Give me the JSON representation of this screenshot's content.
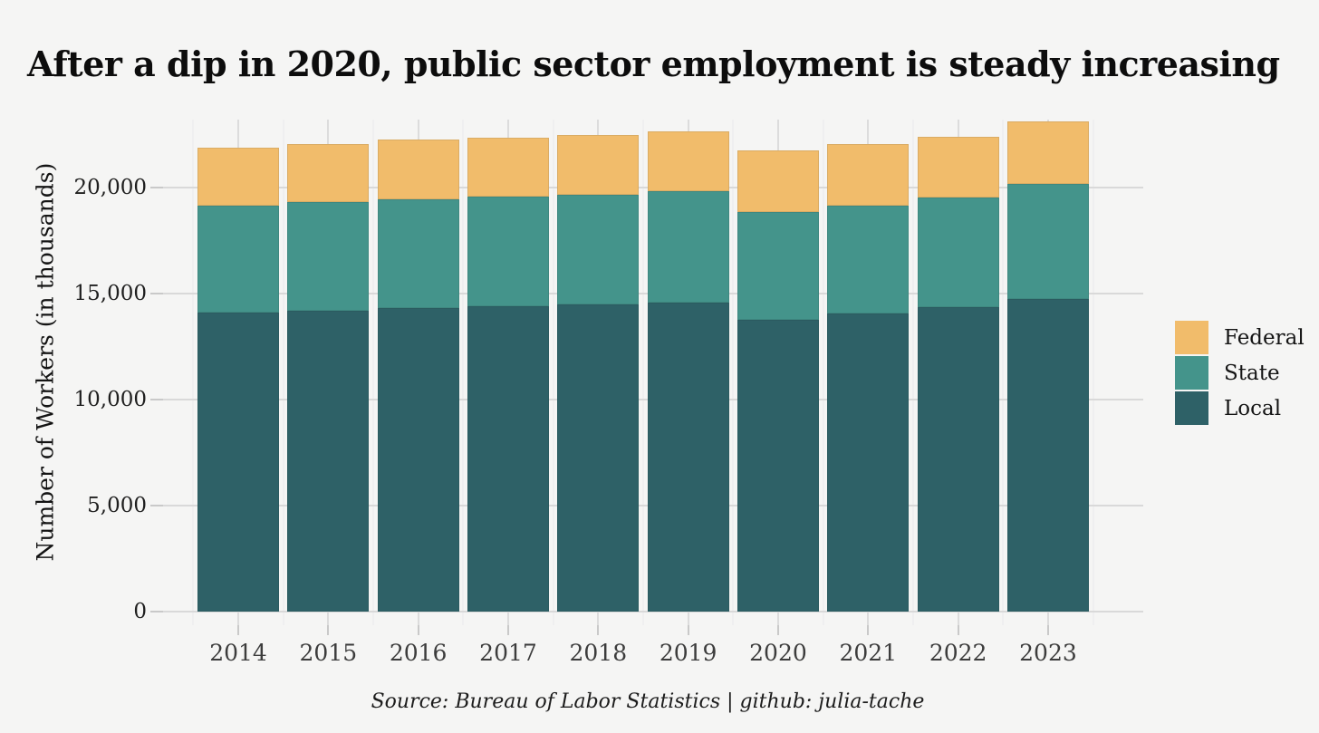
{
  "title": "After a dip in 2020, public sector employment is steady increasing",
  "source_line": "Source: Bureau of Labor Statistics | github: julia-tache",
  "colors": {
    "background": "#f5f5f4",
    "gridline": "#d9d9d9",
    "federal": "#f1bc6b",
    "state": "#44948b",
    "local": "#2e6167",
    "title_text": "#0d0d0d",
    "axis_text": "#1f1f1f"
  },
  "chart_data": {
    "type": "bar",
    "stacked": true,
    "title": "After a dip in 2020, public sector employment is steady increasing",
    "xlabel": "",
    "ylabel": "Number of Workers (in thousands)",
    "categories": [
      "2014",
      "2015",
      "2016",
      "2017",
      "2018",
      "2019",
      "2020",
      "2021",
      "2022",
      "2023"
    ],
    "series": [
      {
        "name": "Federal",
        "color": "#f1bc6b",
        "values": [
          2729,
          2757,
          2795,
          2805,
          2800,
          2834,
          2928,
          2891,
          2870,
          2929
        ]
      },
      {
        "name": "State",
        "color": "#44948b",
        "values": [
          5055,
          5114,
          5146,
          5138,
          5164,
          5237,
          5085,
          5099,
          5154,
          5414
        ]
      },
      {
        "name": "Local",
        "color": "#2e6167",
        "values": [
          14098,
          14195,
          14318,
          14419,
          14501,
          14574,
          13742,
          14042,
          14364,
          14764
        ]
      }
    ],
    "totals": [
      21882,
      22066,
      22259,
      22362,
      22465,
      22645,
      21755,
      22032,
      22388,
      23107
    ],
    "yticks": [
      0,
      5000,
      10000,
      15000,
      20000
    ],
    "ytick_labels": [
      "0",
      "5,000",
      "10,000",
      "15,000",
      "20,000"
    ],
    "ylim": [
      0,
      23200
    ],
    "grid": true,
    "legend_position": "right",
    "legend_order": [
      "Federal",
      "State",
      "Local"
    ]
  }
}
